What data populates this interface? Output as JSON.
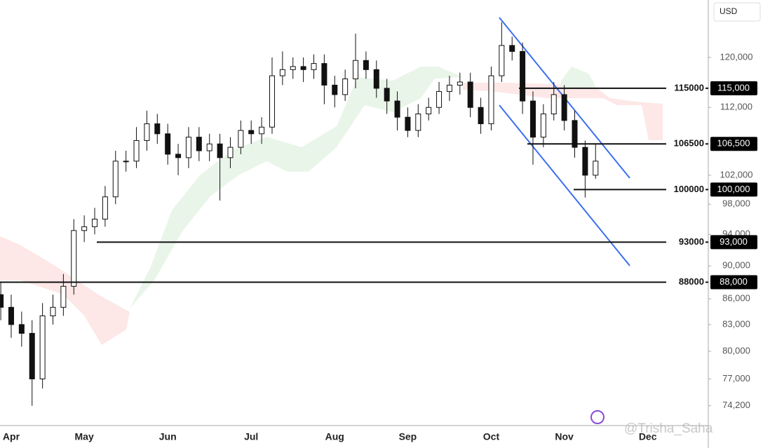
{
  "chart_data": {
    "type": "candlestick",
    "currency": "USD",
    "log_scale": true,
    "watermark": "@Trisha_Saha",
    "categories": [
      null,
      "Apr",
      null,
      null,
      null,
      null,
      null,
      null,
      "May",
      null,
      null,
      null,
      null,
      null,
      null,
      null,
      "Jun",
      null,
      null,
      null,
      null,
      null,
      null,
      null,
      "Jul",
      null,
      null,
      null,
      null,
      null,
      null,
      null,
      "Aug",
      null,
      null,
      null,
      null,
      null,
      null,
      "Sep",
      null,
      null,
      null,
      null,
      null,
      null,
      null,
      "Oct",
      null,
      null,
      null,
      null,
      null,
      null,
      "Nov",
      null,
      null,
      null,
      null,
      null,
      null,
      null,
      "Dec"
    ],
    "open": [
      86500,
      85000,
      83000,
      82000,
      77000,
      84000,
      85000,
      87500,
      94500,
      95000,
      96000,
      99000,
      104000,
      104000,
      107000,
      109500,
      108000,
      105000,
      104500,
      107500,
      105500,
      106500,
      104500,
      106000,
      108500,
      108000,
      109000,
      117000,
      118000,
      118500,
      118000,
      119000,
      115500,
      114000,
      116500,
      119500,
      118000,
      115000,
      113000,
      110500,
      108500,
      111000,
      112000,
      114500,
      115500,
      116000,
      112000,
      109500,
      117000,
      122000,
      121000,
      113000,
      107500,
      111000,
      114000,
      110000,
      106000,
      102000,
      null,
      null,
      null,
      null,
      null
    ],
    "high": [
      88000,
      86500,
      84500,
      83500,
      85500,
      86500,
      89000,
      96000,
      96500,
      97500,
      100500,
      105500,
      105500,
      109000,
      111500,
      111000,
      109500,
      106500,
      109000,
      109000,
      108000,
      108000,
      107500,
      110000,
      110000,
      110500,
      120000,
      121000,
      120000,
      120000,
      120500,
      120500,
      117000,
      118000,
      124000,
      121000,
      119500,
      116500,
      114500,
      112000,
      112500,
      113500,
      116000,
      117000,
      117500,
      117500,
      113500,
      118500,
      126000,
      123500,
      122500,
      114500,
      112500,
      116000,
      115500,
      111500,
      107000,
      106500,
      null,
      null,
      null,
      null,
      null
    ],
    "low": [
      83500,
      81500,
      80500,
      74200,
      76000,
      83000,
      84000,
      86500,
      93000,
      94000,
      95000,
      98000,
      102500,
      103000,
      105500,
      106500,
      103500,
      102000,
      103000,
      104000,
      104000,
      98500,
      103000,
      105000,
      106500,
      106500,
      108000,
      115500,
      116500,
      116000,
      116500,
      112500,
      112000,
      113000,
      115000,
      116500,
      113500,
      111000,
      108500,
      107500,
      107500,
      110000,
      111000,
      113000,
      114000,
      110500,
      108000,
      108500,
      116000,
      119500,
      111000,
      103500,
      106000,
      110000,
      108500,
      104500,
      98900,
      101500,
      null,
      null,
      null,
      null,
      null
    ],
    "close": [
      85000,
      83000,
      82000,
      77000,
      84000,
      85000,
      87500,
      94500,
      95000,
      96000,
      99000,
      104000,
      104000,
      107000,
      109500,
      108000,
      105000,
      104500,
      107500,
      105500,
      106500,
      104500,
      106000,
      108500,
      108000,
      109000,
      117000,
      118000,
      118500,
      118000,
      119000,
      115500,
      114000,
      116500,
      119500,
      118000,
      115000,
      113000,
      110500,
      108500,
      111000,
      112000,
      114500,
      115500,
      116000,
      112000,
      109500,
      117000,
      122000,
      121000,
      113000,
      107500,
      111000,
      114000,
      110000,
      106000,
      102000,
      104000,
      null,
      null,
      null,
      null,
      null
    ],
    "ylim": [
      72200,
      129900
    ],
    "yticks": [
      {
        "value": 120000,
        "label": "120,000"
      },
      {
        "value": 112000,
        "label": "112,000"
      },
      {
        "value": 102000,
        "label": "102,000"
      },
      {
        "value": 98000,
        "label": "98,000"
      },
      {
        "value": 94000,
        "label": "94,000"
      },
      {
        "value": 90000,
        "label": "90,000"
      },
      {
        "value": 86000,
        "label": "86,000"
      },
      {
        "value": 83000,
        "label": "83,000"
      },
      {
        "value": 80000,
        "label": "80,000"
      },
      {
        "value": 77000,
        "label": "77,000"
      },
      {
        "value": 74200,
        "label": "74,200"
      }
    ],
    "levels": [
      {
        "value": 115000,
        "label": "115000",
        "price_label": "115,000"
      },
      {
        "value": 106500,
        "label": "106500",
        "price_label": "106,500"
      },
      {
        "value": 100000,
        "label": "100000",
        "price_label": "100,000"
      },
      {
        "value": 93000,
        "label": "93000",
        "price_label": "93,000"
      },
      {
        "value": 88000,
        "label": "88000",
        "price_label": "88,000"
      }
    ]
  }
}
